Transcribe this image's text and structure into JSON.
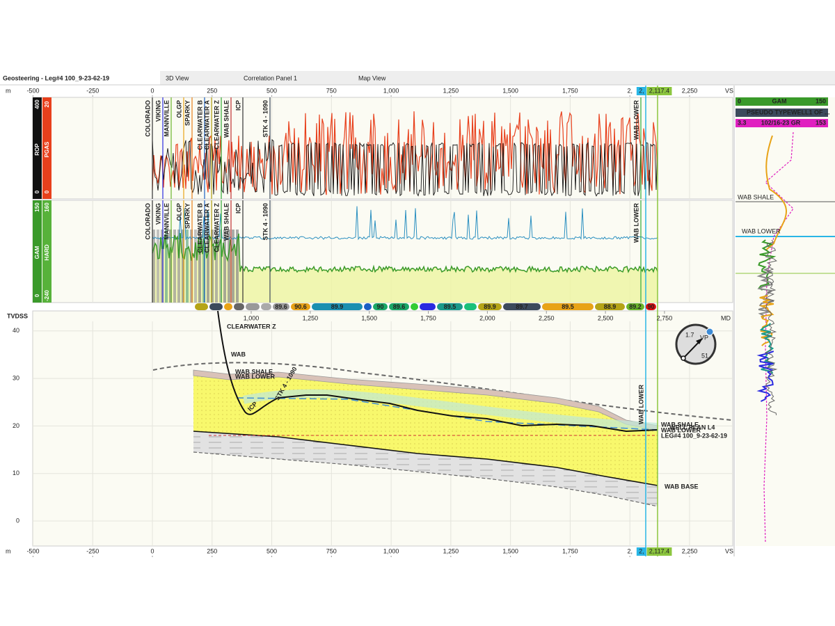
{
  "tabs": [
    "Geosteering - Leg#4 100_9-23-62-19",
    "3D View",
    "Correlation Panel 1",
    "Map View"
  ],
  "vs_axis": {
    "unit": "m",
    "end_label": "VS",
    "ticks": [
      -500,
      -250,
      0,
      250,
      500,
      750,
      {
        "value": 1000,
        "label": "1,000"
      },
      {
        "value": 1250,
        "label": "1,250"
      },
      {
        "value": 1500,
        "label": "1,500"
      },
      {
        "value": 1750,
        "label": "1,750"
      },
      {
        "value": 2000,
        "label": "2,"
      },
      {
        "value": 2250,
        "label": "2,250"
      }
    ],
    "cursors": [
      {
        "value": 2066,
        "label": "2,",
        "color": "#29b6e6"
      },
      {
        "value": 2117.4,
        "label": "2,117.4",
        "color": "#8cc63f"
      }
    ]
  },
  "tracks": [
    {
      "curves": [
        {
          "name": "ROP",
          "min": 0,
          "max": 400,
          "color": "#111111"
        },
        {
          "name": "PGAS",
          "min": 0,
          "max": 20,
          "color": "#e8401c"
        }
      ]
    },
    {
      "curves": [
        {
          "name": "GAM",
          "min": 0,
          "max": 150,
          "color": "#3a9a2a"
        },
        {
          "name": "HARD",
          "min": -240,
          "max": 160,
          "color": "#3a9a2a"
        }
      ]
    }
  ],
  "formation_tops": [
    "COLORADO",
    "VIKING",
    "MANNVILLE",
    "OLGP",
    "SPARKY",
    "CLEARWATER B",
    "CLEARWATER A",
    "CLEARWATER Z",
    "WAB SHALE",
    "ICP",
    "STK 4 - 1090",
    "WAB LOWER"
  ],
  "dip_bar": [
    {
      "color": "#b5a416"
    },
    {
      "color": "#3c4a5c"
    },
    {
      "color": "#e8a317"
    },
    {
      "color": "#666666"
    },
    {
      "color": "#999999"
    },
    {
      "color": "#aaaaaa"
    },
    {
      "color": "#9a9a9a",
      "value": 89.6
    },
    {
      "color": "#e8a317",
      "value": 90.6
    },
    {
      "color": "#1b8fb0",
      "value": 89.9
    },
    {
      "color": "#1b5fc4"
    },
    {
      "color": "#1aa867",
      "value": 90
    },
    {
      "color": "#1aa867",
      "value": 89.6
    },
    {
      "color": "#33cc33"
    },
    {
      "color": "#2a2ae0"
    },
    {
      "color": "#1a9a8a",
      "value": 89.5
    },
    {
      "color": "#1ac07a"
    },
    {
      "color": "#b5a416",
      "value": 89.9
    },
    {
      "color": "#3c4a5c",
      "value": 89.7
    },
    {
      "color": "#e8a317",
      "value": 89.5
    },
    {
      "color": "#b5a416",
      "value": 88.9
    },
    {
      "color": "#6ab52a",
      "value": 89.2
    },
    {
      "color": "#e01010",
      "value": 90
    }
  ],
  "md_axis": {
    "end_label": "MD",
    "ticks": [
      {
        "value": 1000,
        "label": "1,000"
      },
      {
        "value": 1250,
        "label": "1,250"
      },
      {
        "value": 1500,
        "label": "1,500"
      },
      {
        "value": 1750,
        "label": "1,750"
      },
      {
        "value": 2000,
        "label": "2,000"
      },
      {
        "value": 2250,
        "label": "2,250"
      },
      {
        "value": 2500,
        "label": "2,500"
      },
      {
        "value": 2750,
        "label": "2,750"
      }
    ]
  },
  "tvd_axis": {
    "title": "TVDSS",
    "ticks": [
      40,
      30,
      20,
      10,
      0
    ]
  },
  "section_labels": [
    "CLEARWATER Z",
    "WAB",
    "WAB SHALE",
    "WAB LOWER",
    "ICP",
    "STK 4 - 1090",
    "WAB LOWER",
    "WAB SHALE",
    "WAB LOWER",
    "WELL PLAN L4",
    "LEG#4 100_9-23-62-19",
    "WAB BASE"
  ],
  "compass": {
    "dip": 1.7,
    "label": "VP",
    "azimuth": 51
  },
  "right_panel": {
    "gam": {
      "name": "GAM",
      "min": 0,
      "max": 150
    },
    "typewell": "PSEUDO TYPEWELL1 OF ...",
    "gr": {
      "name": "102/16-23 GR",
      "min": 3.3,
      "max": 153
    },
    "tops": [
      "WAB SHALE",
      "WAB LOWER"
    ]
  }
}
